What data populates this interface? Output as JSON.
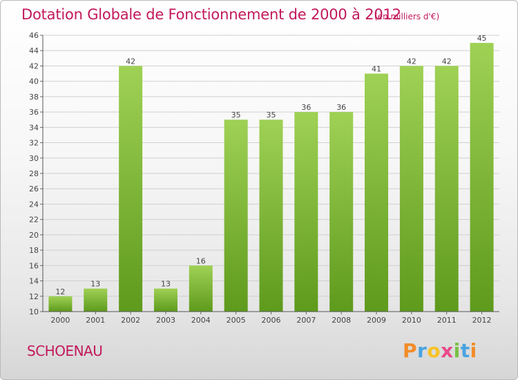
{
  "header": {
    "title": "Dotation Globale de Fonctionnement de 2000 à 2012",
    "unit": "(en milliers d'€)"
  },
  "footer": {
    "commune": "SCHOENAU",
    "logo_text": "Proxiti"
  },
  "colors": {
    "accent": "#c2185b",
    "bar_light": "#9fd155",
    "bar_dark": "#5e9a1c",
    "grid": "#d0d0d0"
  },
  "chart_data": {
    "type": "bar",
    "title": "Dotation Globale de Fonctionnement de 2000 à 2012",
    "subtitle": "(en milliers d'€)",
    "xlabel": "",
    "ylabel": "",
    "categories": [
      "2000",
      "2001",
      "2002",
      "2003",
      "2004",
      "2005",
      "2006",
      "2007",
      "2008",
      "2009",
      "2010",
      "2011",
      "2012"
    ],
    "values": [
      12,
      13,
      42,
      13,
      16,
      35,
      35,
      36,
      36,
      41,
      42,
      42,
      45
    ],
    "ylim": [
      10,
      46
    ],
    "yticks": [
      10,
      12,
      14,
      16,
      18,
      20,
      22,
      24,
      26,
      28,
      30,
      32,
      34,
      36,
      38,
      40,
      42,
      44,
      46
    ],
    "grid": true,
    "legend": "none"
  }
}
